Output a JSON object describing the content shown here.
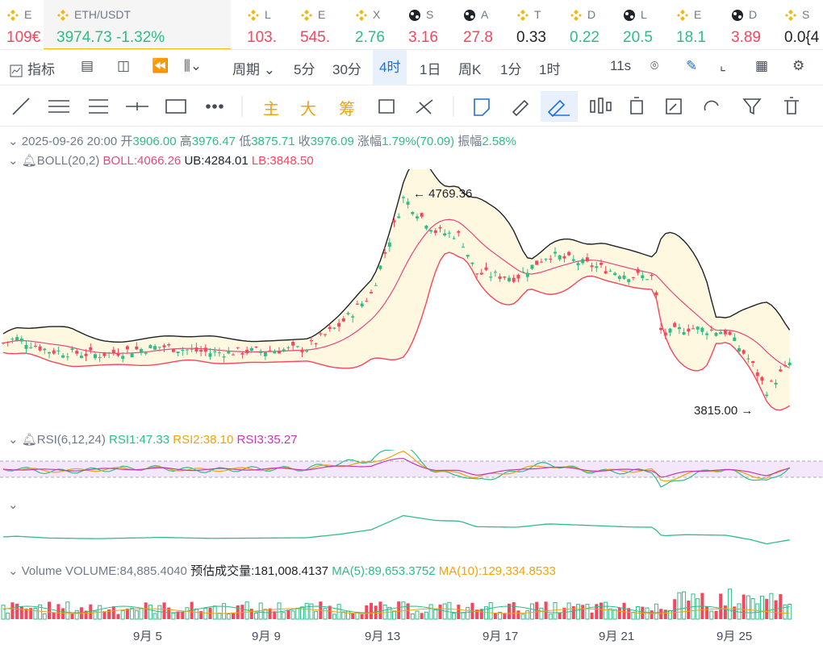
{
  "tickers": [
    {
      "sym": "E",
      "price": "109€",
      "color": "dn",
      "icon": "bnb-icon"
    },
    {
      "sym": "ETH/USDT",
      "price": "3974.73",
      "chg": "-1.32%",
      "color": "up",
      "icon": "bnb-icon",
      "active": true
    },
    {
      "sym": "L",
      "price": "103.",
      "color": "dn",
      "icon": "bnb-icon"
    },
    {
      "sym": "E",
      "price": "545.",
      "color": "dn",
      "icon": "bnb-icon"
    },
    {
      "sym": "X",
      "price": "2.76",
      "color": "up",
      "icon": "bnb-icon"
    },
    {
      "sym": "S",
      "price": "3.16",
      "color": "dn",
      "icon": "multi-icon"
    },
    {
      "sym": "A",
      "price": "27.8",
      "color": "dn",
      "icon": "multi-icon"
    },
    {
      "sym": "T",
      "price": "0.33",
      "color": "neu",
      "icon": "bnb-icon"
    },
    {
      "sym": "D",
      "price": "0.22",
      "color": "up",
      "icon": "bnb-icon"
    },
    {
      "sym": "L",
      "price": "20.5",
      "color": "up",
      "icon": "multi-icon"
    },
    {
      "sym": "E",
      "price": "18.1",
      "color": "up",
      "icon": "bnb-icon"
    },
    {
      "sym": "D",
      "price": "3.89",
      "color": "dn",
      "icon": "multi-icon"
    },
    {
      "sym": "S",
      "price": "0.0{4",
      "color": "neu",
      "icon": "bnb-icon"
    }
  ],
  "toolbar": {
    "indicator": "指标",
    "period": "周期",
    "tf": [
      "5分",
      "30分",
      "4时",
      "1日",
      "周K",
      "1分",
      "1时"
    ],
    "selected": "4时",
    "refresh": "11s"
  },
  "draw": {
    "main": "主",
    "big": "大",
    "chips": "筹"
  },
  "ohlc": {
    "date": "2025-09-26 20:00",
    "open_l": "开",
    "open": "3906.00",
    "high_l": "高",
    "high": "3976.47",
    "low_l": "低",
    "low": "3875.71",
    "close_l": "收",
    "close": "3976.09",
    "chg_l": "涨幅",
    "chg": "1.79%(70.09)",
    "amp_l": "振幅",
    "amp": "2.58%"
  },
  "boll": {
    "name": "BOLL(20,2)",
    "mid": "BOLL:4066.26",
    "ub": "UB:4284.01",
    "lb": "LB:3848.50"
  },
  "rsi": {
    "name": "RSI(6,12,24)",
    "r1": "RSI1:47.33",
    "r2": "RSI2:38.10",
    "r3": "RSI3:35.27"
  },
  "vol": {
    "name": "Volume",
    "v": "VOLUME:84,885.4040",
    "est": "预估成交量:181,008.4137",
    "ma5": "MA(5):89,653.3752",
    "ma10": "MA(10):129,334.8533"
  },
  "marks": {
    "high": "4769.36",
    "low": "3815.00"
  },
  "xaxis": [
    "9月 5",
    "9月 9",
    "9月 13",
    "9月 17",
    "9月 21",
    "9月 25"
  ],
  "colors": {
    "up": "#2ebd85",
    "down": "#f6465d",
    "accent": "#f0b90b",
    "upper": "#1e2329",
    "mid": "#f6465d"
  }
}
